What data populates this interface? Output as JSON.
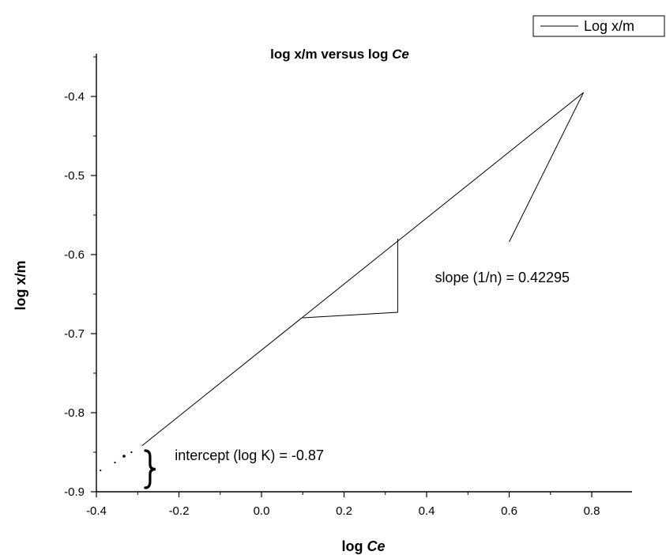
{
  "chart_data": {
    "type": "line",
    "title": {
      "prefix": "log x/m versus log ",
      "italic": "Ce"
    },
    "xlabel": {
      "prefix": "log ",
      "italic": "Ce"
    },
    "ylabel": "log x/m",
    "xlim": [
      -0.4,
      0.9
    ],
    "ylim": [
      -0.9,
      -0.35
    ],
    "xticks": [
      -0.4,
      -0.2,
      0.0,
      0.2,
      0.4,
      0.6,
      0.8
    ],
    "xtick_labels": [
      "-0.4",
      "-0.2",
      "0.0",
      "0.2",
      "0.4",
      "0.6",
      "0.8"
    ],
    "yticks": [
      -0.9,
      -0.8,
      -0.7,
      -0.6,
      -0.5,
      -0.4
    ],
    "ytick_labels": [
      "-0.9",
      "-0.8",
      "-0.7",
      "-0.6",
      "-0.5",
      "-0.4"
    ],
    "grid": false,
    "legend_position": "top-right",
    "series": [
      {
        "name": "Log x/m",
        "x": [
          -0.29,
          0.78
        ],
        "y": [
          -0.842,
          -0.395
        ]
      }
    ],
    "extrapolation_points": {
      "x": [
        -0.39,
        -0.355,
        -0.333,
        -0.315
      ],
      "y": [
        -0.873,
        -0.863,
        -0.855,
        -0.85
      ]
    },
    "slope_triangle": {
      "x": [
        0.1,
        0.33,
        0.33
      ],
      "y": [
        -0.68,
        -0.673,
        -0.58
      ]
    },
    "pointer_line": {
      "x": [
        0.6,
        0.78
      ],
      "y": [
        -0.584,
        -0.395
      ]
    },
    "intercept_brace": {
      "x": -0.27,
      "y": [
        -0.895,
        -0.848
      ]
    },
    "annotations": {
      "slope": {
        "text": "slope (1/n) = 0.42295",
        "x": 0.42,
        "y": -0.635
      },
      "intercept": {
        "text": "intercept (log K) = -0.87",
        "x": -0.21,
        "y": -0.86
      }
    }
  }
}
